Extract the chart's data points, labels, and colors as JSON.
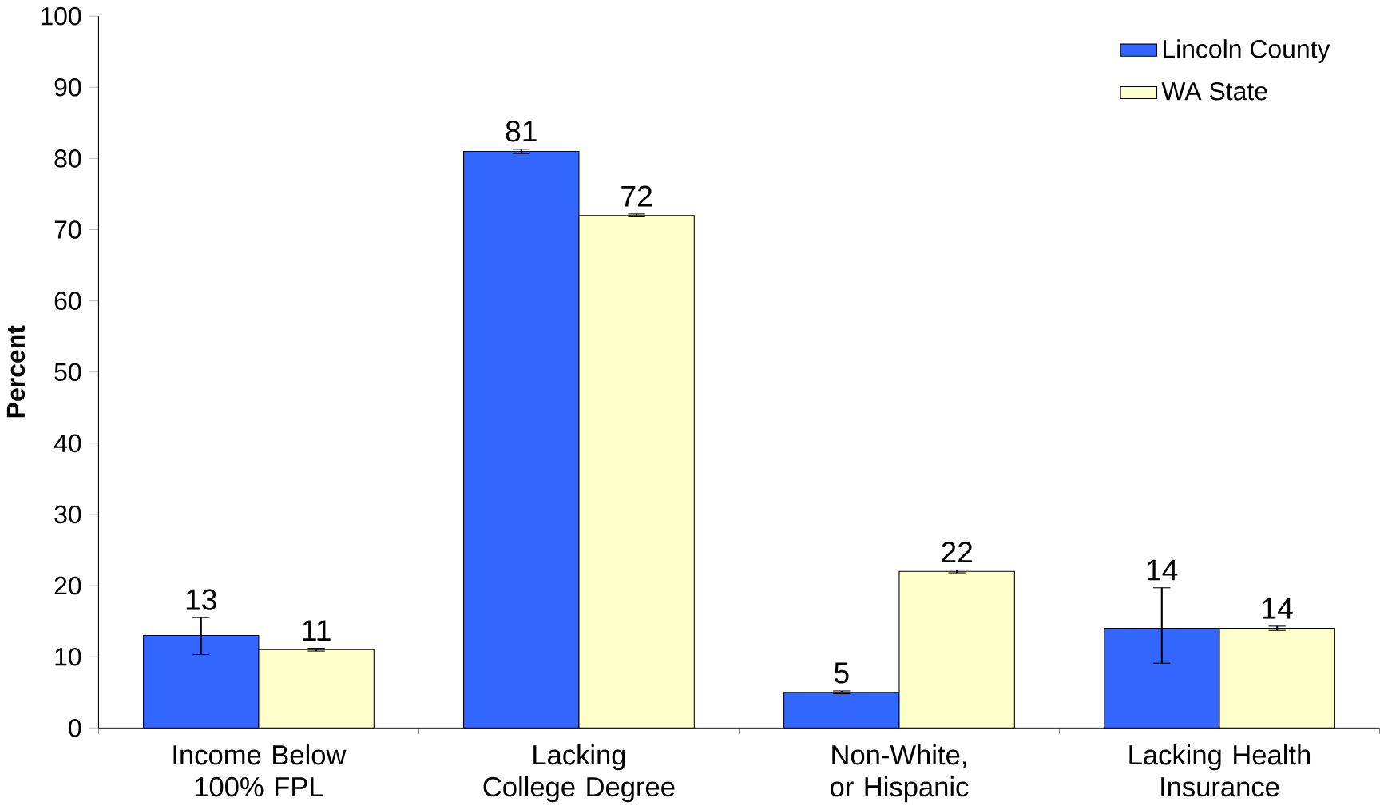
{
  "chart_data": {
    "type": "bar",
    "ylabel": "Percent",
    "categories": [
      "Income Below 100% FPL",
      "Lacking College Degree",
      "Non-White, or Hispanic",
      "Lacking Health Insurance"
    ],
    "series": [
      {
        "name": "Lincoln County",
        "color": "#3366ff",
        "values": [
          13,
          81,
          5,
          14
        ],
        "errors": [
          [
            10.3,
            15.5
          ],
          0.3,
          0.2,
          [
            9.1,
            19.7
          ]
        ]
      },
      {
        "name": "WA State",
        "color": "#ffffcc",
        "values": [
          11,
          72,
          22,
          14
        ],
        "errors": [
          0.2,
          0.2,
          0.2,
          0.3
        ]
      }
    ],
    "ylim": [
      0,
      100
    ],
    "yticks": [
      0,
      10,
      20,
      30,
      40,
      50,
      60,
      70,
      80,
      90,
      100
    ],
    "grid": false,
    "legend": "top right",
    "data_labels": true
  }
}
